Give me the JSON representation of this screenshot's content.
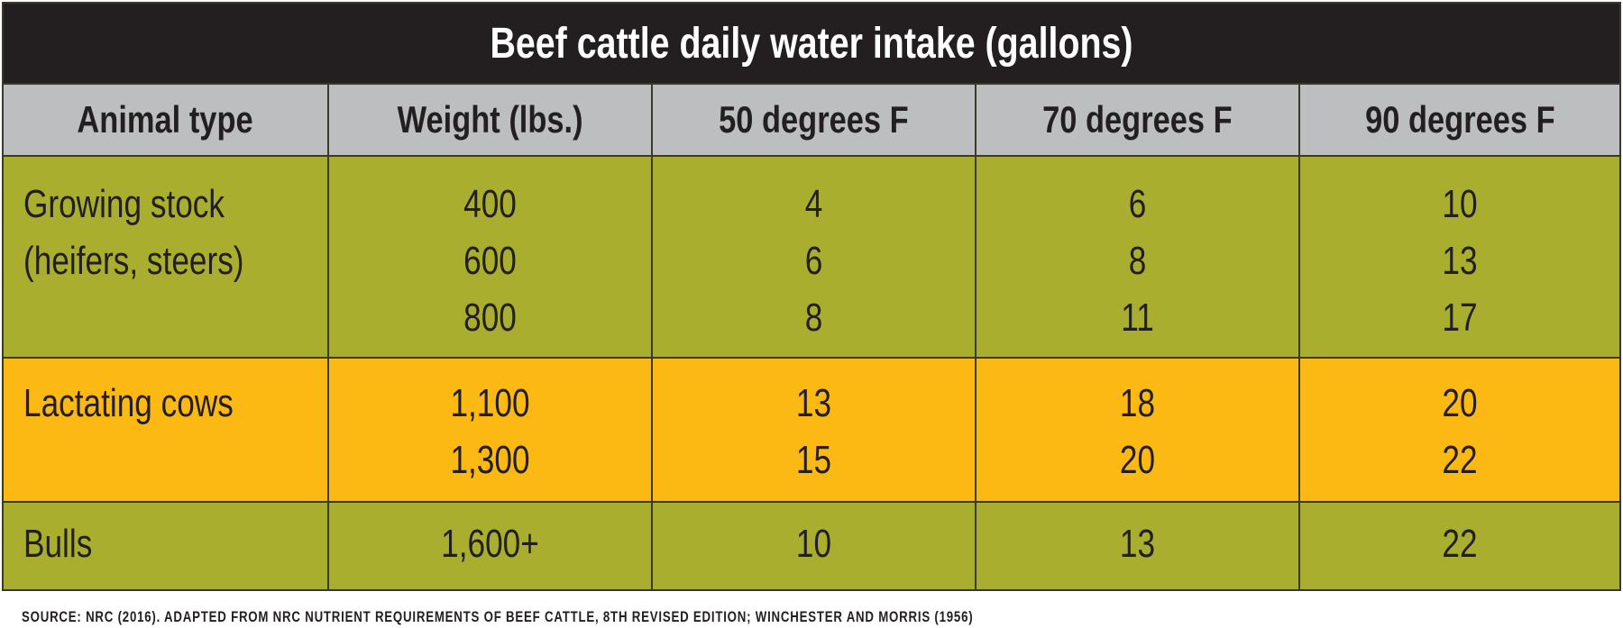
{
  "chart_data": {
    "type": "table",
    "title": "Beef cattle daily water intake (gallons)",
    "columns": [
      "Animal type",
      "Weight (lbs.)",
      "50 degrees F",
      "70 degrees F",
      "90 degrees F"
    ],
    "rows": [
      {
        "animal_type": "Growing stock (heifers, steers)",
        "weight": "400",
        "f50": 4,
        "f70": 6,
        "f90": 10
      },
      {
        "animal_type": "Growing stock (heifers, steers)",
        "weight": "600",
        "f50": 6,
        "f70": 8,
        "f90": 13
      },
      {
        "animal_type": "Growing stock (heifers, steers)",
        "weight": "800",
        "f50": 8,
        "f70": 11,
        "f90": 17
      },
      {
        "animal_type": "Lactating cows",
        "weight": "1,100",
        "f50": 13,
        "f70": 18,
        "f90": 20
      },
      {
        "animal_type": "Lactating cows",
        "weight": "1,300",
        "f50": 15,
        "f70": 20,
        "f90": 22
      },
      {
        "animal_type": "Bulls",
        "weight": "1,600+",
        "f50": 10,
        "f70": 13,
        "f90": 22
      }
    ],
    "source": "SOURCE: NRC (2016). ADAPTED FROM NRC NUTRIENT REQUIREMENTS OF BEEF CATTLE, 8TH REVISED EDITION; WINCHESTER AND MORRIS (1956)"
  },
  "table": {
    "title": "Beef cattle daily water intake (gallons)",
    "headers": [
      "Animal type",
      "Weight (lbs.)",
      "50 degrees F",
      "70 degrees F",
      "90 degrees F"
    ],
    "groups": [
      {
        "label_lines": [
          "Growing stock",
          "(heifers, steers)"
        ],
        "weight": [
          "400",
          "600",
          "800"
        ],
        "f50": [
          "4",
          "6",
          "8"
        ],
        "f70": [
          "6",
          "8",
          "11"
        ],
        "f90": [
          "10",
          "13",
          "17"
        ]
      },
      {
        "label_lines": [
          "Lactating cows"
        ],
        "weight": [
          "1,100",
          "1,300"
        ],
        "f50": [
          "13",
          "15"
        ],
        "f70": [
          "18",
          "20"
        ],
        "f90": [
          "20",
          "22"
        ]
      },
      {
        "label_lines": [
          "Bulls"
        ],
        "weight": [
          "1,600+"
        ],
        "f50": [
          "10"
        ],
        "f70": [
          "13"
        ],
        "f90": [
          "22"
        ]
      }
    ]
  },
  "source": "SOURCE: NRC (2016). ADAPTED FROM NRC NUTRIENT REQUIREMENTS OF BEEF CATTLE, 8TH REVISED EDITION; WINCHESTER AND MORRIS (1956)",
  "colors": {
    "title_bg": "#231f20",
    "header_bg": "#bcbec0",
    "green": "#a9ae2e",
    "orange": "#fdb913"
  }
}
